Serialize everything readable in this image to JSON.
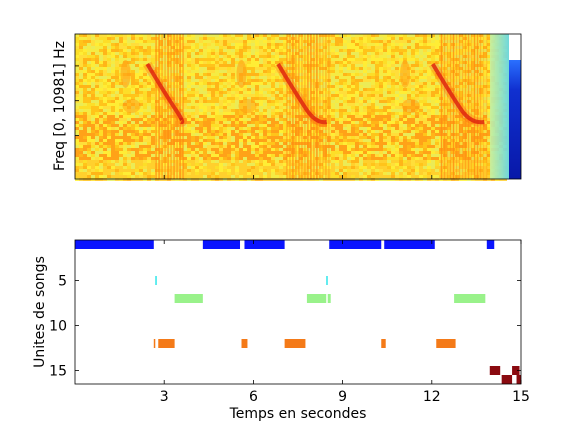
{
  "figure": {
    "colors": {
      "background": "#ffffff",
      "axes_edge": "#000000",
      "spectrogram_base": "#ffd21e",
      "spectrogram_warm": "#ff8a10",
      "spectrogram_hot": "#d01010",
      "colorbar_top": "#2060ff",
      "colorbar_body": "#0a1fb0"
    }
  },
  "chart_data": [
    {
      "type": "heatmap",
      "description_of_data": "spectrogram",
      "ylabel": "Freq [0, 10981] Hz",
      "xlabel": "",
      "xlim": [
        0,
        15
      ],
      "show_xticklabels": false,
      "show_yticklabels": false,
      "frequency_range_hz": [
        0,
        10981
      ],
      "loud_segments_s": [
        [
          2.7,
          3.7,
          3.3
        ],
        [
          7.1,
          8.6,
          7.5
        ],
        [
          12.3,
          13.9,
          12.9
        ]
      ],
      "faint_bursts_s": [
        1.7,
        5.6,
        11.1
      ],
      "colorbar": true
    },
    {
      "type": "scatter",
      "description_of_data": "song units timeline",
      "xlabel": "Temps en secondes",
      "ylabel": "Unites de songs",
      "xlim": [
        0,
        15
      ],
      "ylim": [
        16.5,
        0.5
      ],
      "y_reversed": true,
      "xticks": [
        3,
        6,
        9,
        12,
        15
      ],
      "yticks": [
        5,
        10,
        15
      ],
      "grid": false,
      "series": [
        {
          "unit": 1,
          "color": "#0a14ff",
          "intervals": [
            [
              0.0,
              2.65
            ],
            [
              4.3,
              5.55
            ],
            [
              5.7,
              7.05
            ],
            [
              8.55,
              10.3
            ],
            [
              10.4,
              12.1
            ],
            [
              13.85,
              14.1
            ]
          ]
        },
        {
          "unit": 5,
          "color": "#30e6ea",
          "intervals": [
            [
              2.7,
              2.75
            ],
            [
              8.45,
              8.5
            ]
          ]
        },
        {
          "unit": 7,
          "color": "#99f28a",
          "intervals": [
            [
              3.35,
              4.3
            ],
            [
              7.8,
              8.45
            ],
            [
              8.5,
              8.6
            ],
            [
              12.75,
              13.8
            ]
          ]
        },
        {
          "unit": 12,
          "color": "#f47a18",
          "intervals": [
            [
              2.65,
              2.7
            ],
            [
              2.8,
              3.35
            ],
            [
              5.6,
              5.8
            ],
            [
              7.05,
              7.75
            ],
            [
              10.3,
              10.45
            ],
            [
              12.15,
              12.8
            ]
          ]
        },
        {
          "unit": 15,
          "color": "#8a0a10",
          "intervals": [
            [
              13.95,
              14.3
            ],
            [
              14.7,
              14.95
            ]
          ]
        },
        {
          "unit": 16,
          "color": "#8a0a10",
          "intervals": [
            [
              14.35,
              14.7
            ],
            [
              14.85,
              15.0
            ]
          ]
        }
      ]
    }
  ]
}
